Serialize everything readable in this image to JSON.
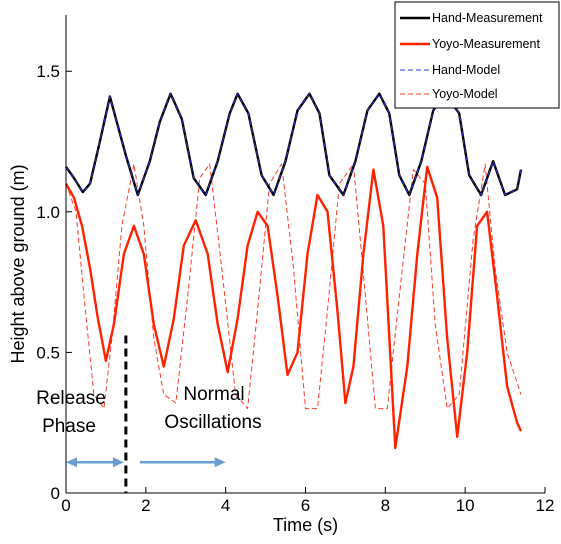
{
  "chart_data": {
    "type": "line",
    "xlabel": "Time (s)",
    "ylabel": "Height above ground (m)",
    "xlim": [
      0,
      12
    ],
    "ylim": [
      0,
      1.7
    ],
    "x_ticks": [
      0,
      2,
      4,
      6,
      8,
      10,
      12
    ],
    "x_tick_labels": [
      "0",
      "2",
      "4",
      "6",
      "8",
      "10",
      "12"
    ],
    "y_ticks": [
      0,
      0.5,
      1.0,
      1.5
    ],
    "y_tick_labels": [
      "0",
      "0.5",
      "1.0",
      "1.5"
    ],
    "grid": false,
    "legend_position": "top-right",
    "colors": {
      "hand": "#000000",
      "hand_model": "#3333cc",
      "yoyo": "#ff2200",
      "yoyo_model": "#ff3b2f",
      "arrow": "#6a9fcf",
      "divider": "#000000"
    },
    "series": [
      {
        "name": "Hand-Measurement",
        "style": "solid",
        "x": [
          0,
          0.2,
          0.42,
          0.6,
          0.85,
          1.1,
          1.5,
          1.8,
          2.1,
          2.35,
          2.62,
          2.9,
          3.2,
          3.5,
          3.8,
          4.1,
          4.3,
          4.57,
          4.9,
          5.2,
          5.5,
          5.8,
          6.1,
          6.35,
          6.6,
          6.95,
          7.25,
          7.55,
          7.85,
          8.1,
          8.35,
          8.6,
          8.9,
          9.2,
          9.5,
          9.85,
          10.1,
          10.4,
          10.7,
          11.0,
          11.3,
          11.4
        ],
        "y": [
          1.16,
          1.12,
          1.07,
          1.1,
          1.25,
          1.41,
          1.2,
          1.06,
          1.18,
          1.32,
          1.42,
          1.33,
          1.12,
          1.06,
          1.18,
          1.35,
          1.42,
          1.35,
          1.13,
          1.06,
          1.18,
          1.36,
          1.42,
          1.35,
          1.13,
          1.06,
          1.18,
          1.36,
          1.42,
          1.35,
          1.13,
          1.06,
          1.18,
          1.36,
          1.42,
          1.35,
          1.13,
          1.06,
          1.18,
          1.06,
          1.08,
          1.15
        ]
      },
      {
        "name": "Hand-Model",
        "style": "dashed",
        "x": [
          0,
          0.2,
          0.42,
          0.6,
          0.85,
          1.1,
          1.5,
          1.8,
          2.1,
          2.35,
          2.62,
          2.9,
          3.2,
          3.5,
          3.8,
          4.1,
          4.3,
          4.57,
          4.9,
          5.2,
          5.5,
          5.8,
          6.1,
          6.35,
          6.6,
          6.95,
          7.25,
          7.55,
          7.85,
          8.1,
          8.35,
          8.6,
          8.9,
          9.2,
          9.5,
          9.85,
          10.1,
          10.4,
          10.7,
          11.0,
          11.3,
          11.4
        ],
        "y": [
          1.16,
          1.12,
          1.07,
          1.1,
          1.25,
          1.41,
          1.2,
          1.06,
          1.18,
          1.32,
          1.42,
          1.33,
          1.12,
          1.06,
          1.18,
          1.35,
          1.42,
          1.35,
          1.13,
          1.06,
          1.18,
          1.36,
          1.42,
          1.35,
          1.13,
          1.06,
          1.18,
          1.36,
          1.42,
          1.35,
          1.13,
          1.06,
          1.18,
          1.36,
          1.42,
          1.35,
          1.13,
          1.06,
          1.18,
          1.06,
          1.08,
          1.15
        ]
      },
      {
        "name": "Yoyo-Measurement",
        "style": "solid",
        "x": [
          0,
          0.2,
          0.4,
          0.6,
          0.8,
          1.0,
          1.2,
          1.45,
          1.7,
          1.95,
          2.2,
          2.45,
          2.7,
          2.95,
          3.25,
          3.55,
          3.8,
          4.05,
          4.3,
          4.55,
          4.8,
          5.05,
          5.3,
          5.55,
          5.8,
          6.05,
          6.3,
          6.55,
          6.8,
          7.0,
          7.2,
          7.45,
          7.7,
          7.95,
          8.25,
          8.55,
          8.8,
          9.05,
          9.3,
          9.55,
          9.8,
          10.05,
          10.3,
          10.55,
          10.8,
          11.05,
          11.3,
          11.4
        ],
        "y": [
          1.1,
          1.05,
          0.95,
          0.8,
          0.62,
          0.47,
          0.6,
          0.85,
          0.95,
          0.85,
          0.6,
          0.45,
          0.62,
          0.88,
          0.97,
          0.85,
          0.6,
          0.43,
          0.62,
          0.88,
          1.0,
          0.95,
          0.7,
          0.42,
          0.5,
          0.85,
          1.06,
          1.0,
          0.65,
          0.32,
          0.45,
          0.85,
          1.15,
          0.95,
          0.16,
          0.45,
          0.85,
          1.16,
          1.05,
          0.55,
          0.2,
          0.5,
          0.95,
          1.0,
          0.7,
          0.38,
          0.25,
          0.22
        ]
      },
      {
        "name": "Yoyo-Model",
        "style": "dashed",
        "x": [
          0,
          0.25,
          0.45,
          0.7,
          0.95,
          1.15,
          1.4,
          1.7,
          1.95,
          2.2,
          2.45,
          2.75,
          3.05,
          3.35,
          3.6,
          3.9,
          4.25,
          4.55,
          4.8,
          5.1,
          5.4,
          5.7,
          6.0,
          6.3,
          6.55,
          6.85,
          7.2,
          7.5,
          7.75,
          8.05,
          8.35,
          8.7,
          9.0,
          9.25,
          9.55,
          9.85,
          10.2,
          10.5,
          10.75,
          11.05,
          11.4
        ],
        "y": [
          1.1,
          1.0,
          0.7,
          0.35,
          0.3,
          0.55,
          0.95,
          1.17,
          0.95,
          0.55,
          0.35,
          0.32,
          0.7,
          1.12,
          1.17,
          0.8,
          0.35,
          0.3,
          0.65,
          1.1,
          1.17,
          0.8,
          0.3,
          0.3,
          0.65,
          1.1,
          1.17,
          0.7,
          0.3,
          0.3,
          0.7,
          1.15,
          1.1,
          0.6,
          0.3,
          0.35,
          0.9,
          1.17,
          0.8,
          0.5,
          0.35
        ]
      }
    ],
    "annotations": {
      "release_phase": [
        "Release",
        "Phase"
      ],
      "normal_oscillations": [
        "Normal",
        "Oscillations"
      ],
      "divider_x": 1.5,
      "release_arrow": [
        0,
        1.5
      ],
      "normal_arrow": [
        1.7,
        4.0
      ],
      "arrow_y": 0.12
    }
  }
}
